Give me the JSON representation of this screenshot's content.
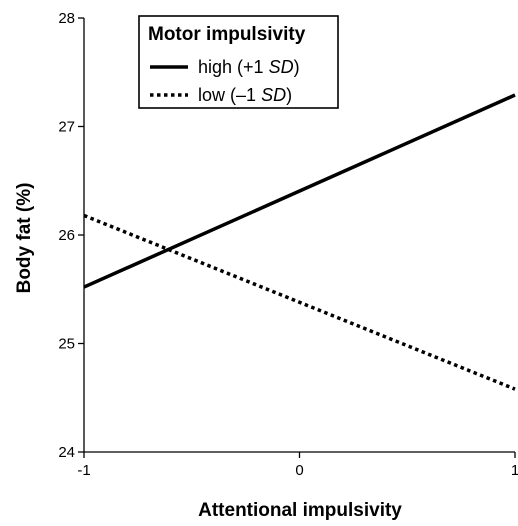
{
  "chart_data": {
    "type": "line",
    "title": "",
    "xlabel": "Attentional impulsivity",
    "ylabel": "Body fat (%)",
    "xlim": [
      -1,
      1
    ],
    "ylim": [
      24,
      28
    ],
    "xticks": [
      -1,
      0,
      1
    ],
    "xtick_labels": [
      "-1",
      "0",
      "1"
    ],
    "yticks": [
      24,
      25,
      26,
      27,
      28
    ],
    "ytick_labels": [
      "24",
      "25",
      "26",
      "27",
      "28"
    ],
    "grid": false,
    "legend": {
      "title": "Motor impulsivity",
      "placement": "top-left",
      "entries": [
        {
          "label": "high",
          "sd_text": "(+1 ",
          "sd_italic": "SD",
          "close": ")",
          "style": "solid"
        },
        {
          "label": "low",
          "sd_text": "(–1 ",
          "sd_italic": "SD",
          "close": ")",
          "style": "dotted"
        }
      ]
    },
    "series": [
      {
        "name": "high (+1 SD)",
        "style": "solid",
        "x": [
          -1,
          1
        ],
        "y": [
          25.52,
          27.29
        ]
      },
      {
        "name": "low (–1 SD)",
        "style": "dotted",
        "x": [
          -1,
          1
        ],
        "y": [
          26.18,
          24.58
        ]
      }
    ],
    "colors": {
      "line": "#000000",
      "axis": "#000000"
    }
  }
}
